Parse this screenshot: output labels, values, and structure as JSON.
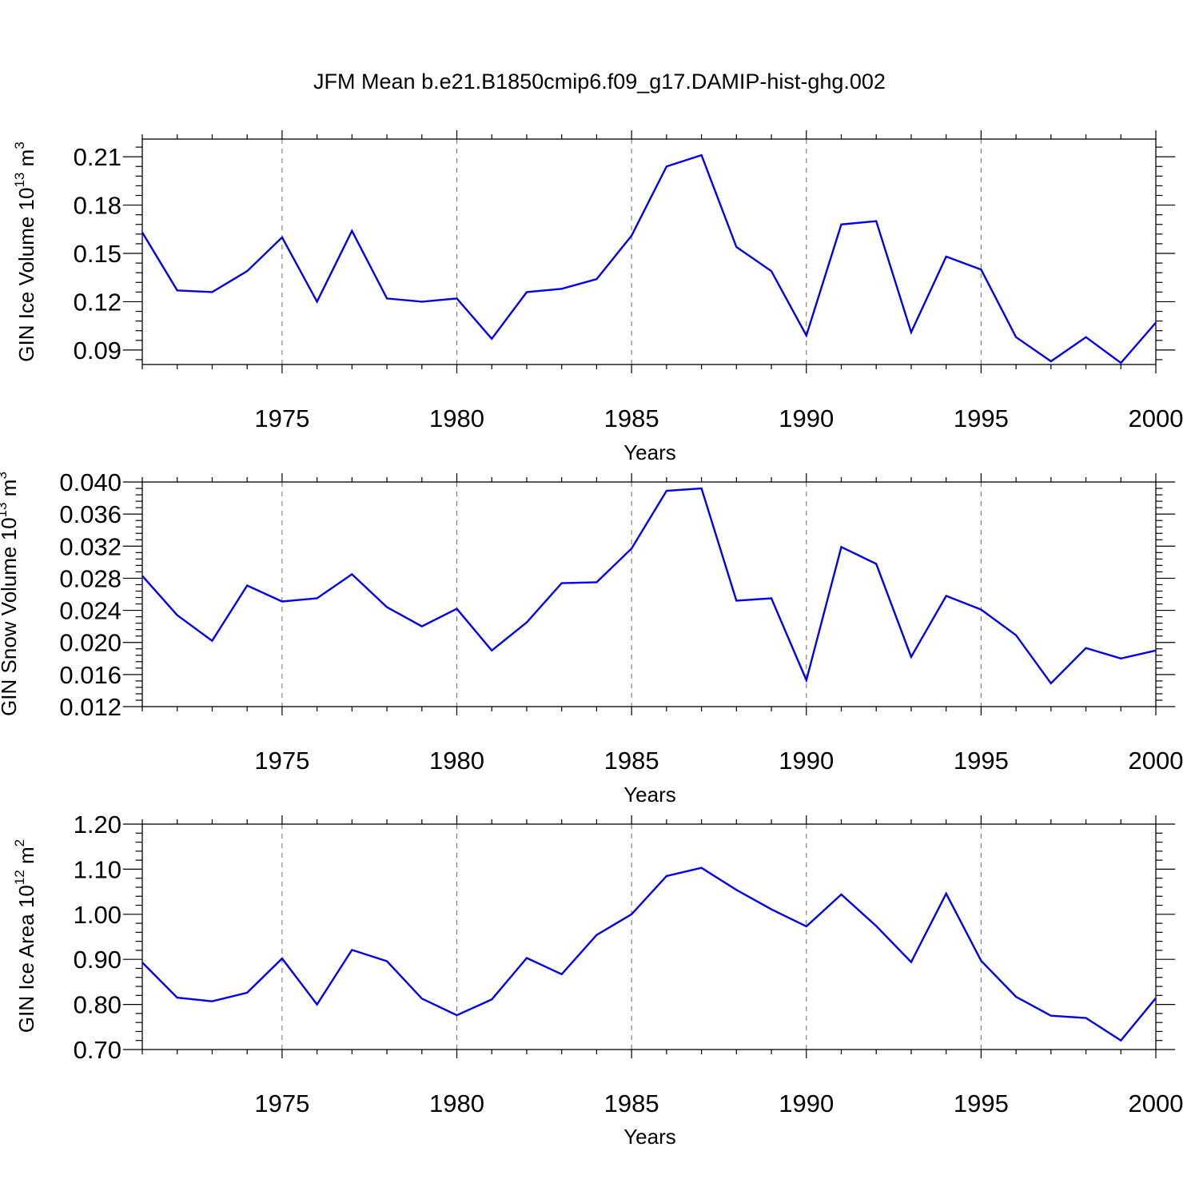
{
  "title": "JFM Mean b.e21.B1850cmip6.f09_g17.DAMIP-hist-ghg.002",
  "colors": {
    "series": "#0000ee",
    "grid": "#777777",
    "axis": "#000000"
  },
  "chart_data": [
    {
      "type": "line",
      "xlabel": "Years",
      "ylabel": {
        "text": "GIN Ice Volume 10",
        "exp": "13",
        "unit": " m",
        "unit_exp": "3"
      },
      "xlim": [
        1971,
        2000
      ],
      "ylim": [
        0.081,
        0.221
      ],
      "xticks": [
        1975,
        1980,
        1985,
        1990,
        1995,
        2000
      ],
      "xminor_step": 1,
      "yticks": [
        "0.09",
        "0.12",
        "0.15",
        "0.18",
        "0.21"
      ],
      "yminor_step": 0.006,
      "grid": "vertical-dashed-at-major-x",
      "x": [
        1971,
        1972,
        1973,
        1974,
        1975,
        1976,
        1977,
        1978,
        1979,
        1980,
        1981,
        1982,
        1983,
        1984,
        1985,
        1986,
        1987,
        1988,
        1989,
        1990,
        1991,
        1992,
        1993,
        1994,
        1995,
        1996,
        1997,
        1998,
        1999,
        2000
      ],
      "y": [
        0.163,
        0.127,
        0.126,
        0.139,
        0.16,
        0.12,
        0.164,
        0.122,
        0.12,
        0.122,
        0.097,
        0.126,
        0.128,
        0.134,
        0.161,
        0.204,
        0.211,
        0.154,
        0.139,
        0.099,
        0.168,
        0.17,
        0.101,
        0.148,
        0.14,
        0.098,
        0.083,
        0.098,
        0.082,
        0.107
      ]
    },
    {
      "type": "line",
      "xlabel": "Years",
      "ylabel": {
        "text": "GIN Snow Volume 10",
        "exp": "13",
        "unit": " m",
        "unit_exp": "3"
      },
      "xlim": [
        1971,
        2000
      ],
      "ylim": [
        0.012,
        0.04
      ],
      "xticks": [
        1975,
        1980,
        1985,
        1990,
        1995,
        2000
      ],
      "xminor_step": 1,
      "yticks": [
        "0.012",
        "0.016",
        "0.020",
        "0.024",
        "0.028",
        "0.032",
        "0.036",
        "0.040"
      ],
      "yminor_step": 0.0008,
      "grid": "vertical-dashed-at-major-x",
      "x": [
        1971,
        1972,
        1973,
        1974,
        1975,
        1976,
        1977,
        1978,
        1979,
        1980,
        1981,
        1982,
        1983,
        1984,
        1985,
        1986,
        1987,
        1988,
        1989,
        1990,
        1991,
        1992,
        1993,
        1994,
        1995,
        1996,
        1997,
        1998,
        1999,
        2000
      ],
      "y": [
        0.0283,
        0.0234,
        0.0202,
        0.0271,
        0.0251,
        0.0255,
        0.0285,
        0.0244,
        0.022,
        0.0242,
        0.019,
        0.0225,
        0.0274,
        0.0275,
        0.0317,
        0.0389,
        0.0392,
        0.0252,
        0.0255,
        0.0153,
        0.0319,
        0.0298,
        0.0182,
        0.0258,
        0.0241,
        0.0209,
        0.0149,
        0.0193,
        0.018,
        0.019
      ]
    },
    {
      "type": "line",
      "xlabel": "Years",
      "ylabel": {
        "text": "GIN Ice Area 10",
        "exp": "12",
        "unit": " m",
        "unit_exp": "2"
      },
      "xlim": [
        1971,
        2000
      ],
      "ylim": [
        0.7,
        1.2
      ],
      "xticks": [
        1975,
        1980,
        1985,
        1990,
        1995,
        2000
      ],
      "xminor_step": 1,
      "yticks": [
        "0.70",
        "0.80",
        "0.90",
        "1.00",
        "1.10",
        "1.20"
      ],
      "yminor_step": 0.02,
      "grid": "vertical-dashed-at-major-x",
      "x": [
        1971,
        1972,
        1973,
        1974,
        1975,
        1976,
        1977,
        1978,
        1979,
        1980,
        1981,
        1982,
        1983,
        1984,
        1985,
        1986,
        1987,
        1988,
        1989,
        1990,
        1991,
        1992,
        1993,
        1994,
        1995,
        1996,
        1997,
        1998,
        1999,
        2000
      ],
      "y": [
        0.893,
        0.815,
        0.807,
        0.826,
        0.902,
        0.8,
        0.921,
        0.896,
        0.813,
        0.776,
        0.811,
        0.903,
        0.867,
        0.954,
        1.0,
        1.085,
        1.103,
        1.054,
        1.011,
        0.973,
        1.044,
        0.974,
        0.894,
        1.046,
        0.897,
        0.817,
        0.775,
        0.77,
        0.72,
        0.814
      ]
    }
  ]
}
